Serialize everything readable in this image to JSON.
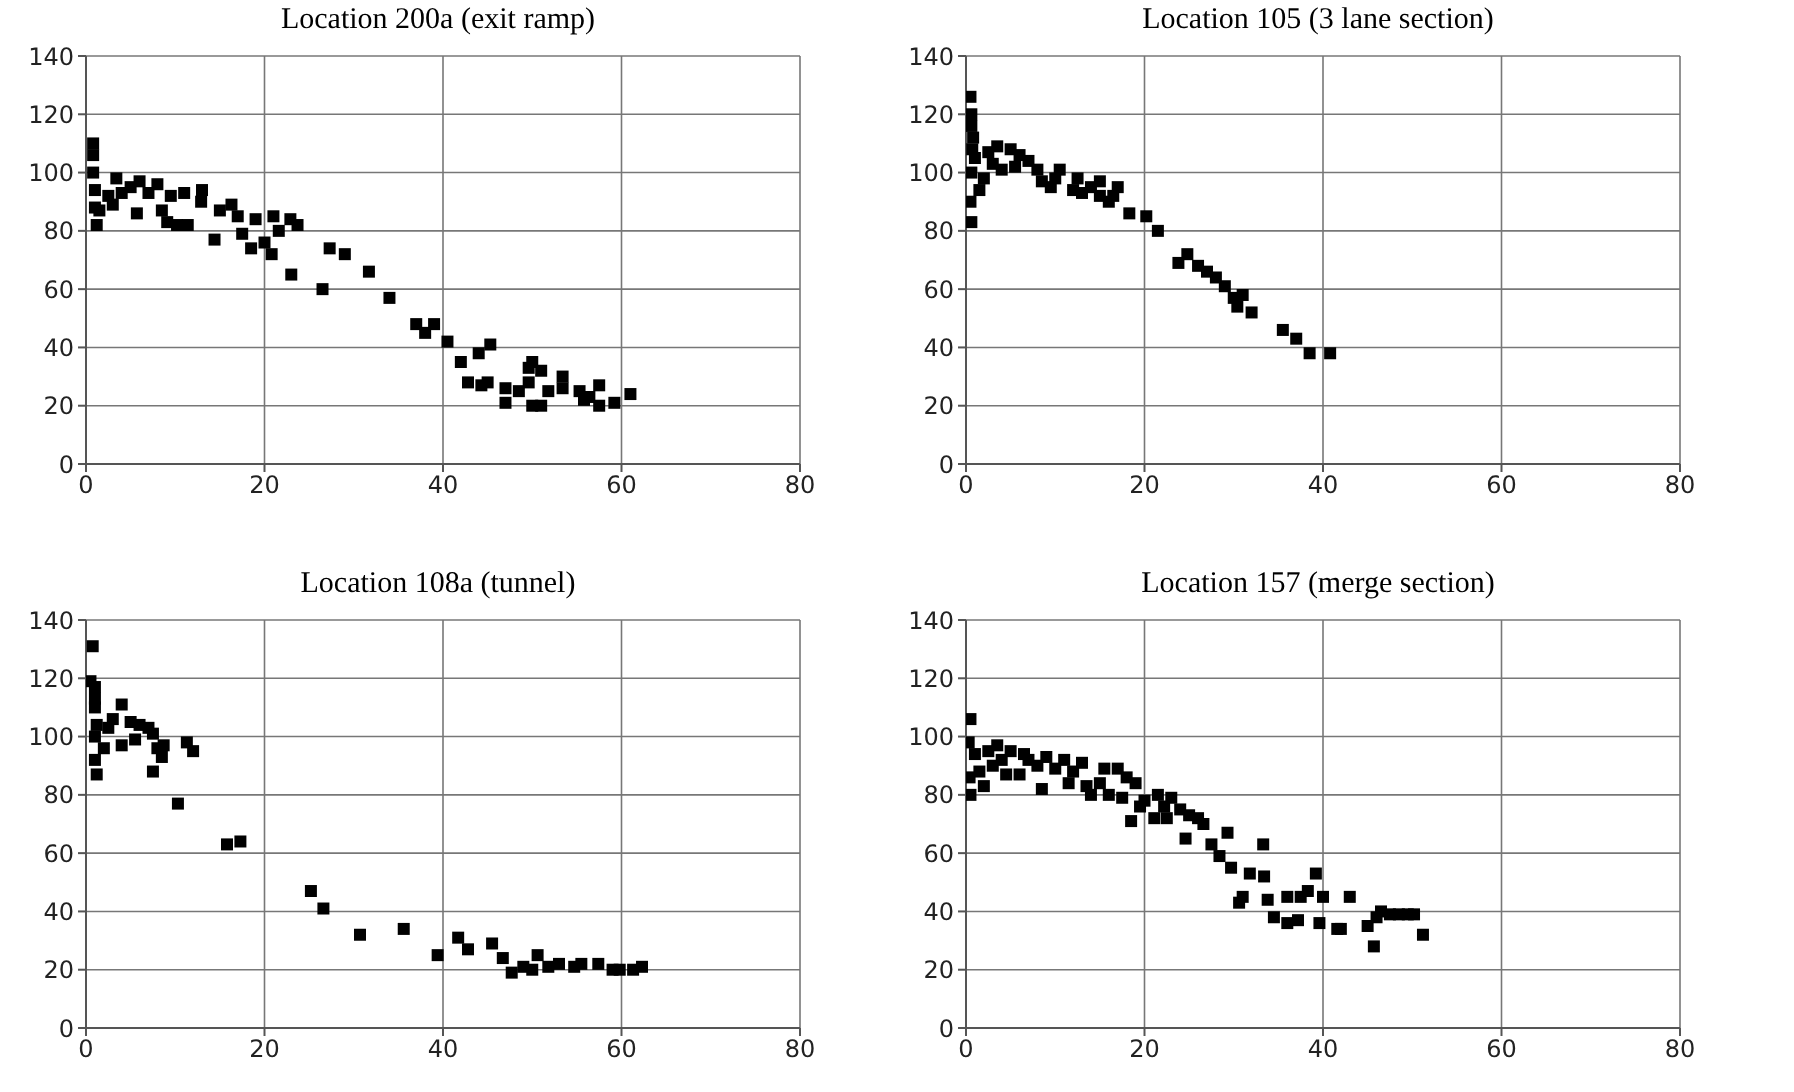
{
  "chart_data": [
    {
      "type": "scatter",
      "title": "Location 200a (exit ramp)",
      "color": "#000000",
      "marker": "square",
      "grid": true,
      "xlim": [
        0,
        80
      ],
      "xticks": [
        0,
        20,
        40,
        60,
        80
      ],
      "ylim": [
        0,
        140
      ],
      "yticks": [
        0,
        20,
        40,
        60,
        80,
        100,
        120,
        140
      ],
      "x": [
        0.8,
        0.8,
        0.8,
        1,
        1,
        1.2,
        1.5,
        2.5,
        3,
        3.4,
        4,
        5,
        5.7,
        6,
        7,
        8,
        8.5,
        9.1,
        9.5,
        10.2,
        11,
        11.4,
        12.9,
        13,
        14.4,
        15,
        16.3,
        17,
        17.5,
        18.5,
        19,
        20,
        20.8,
        21,
        21.6,
        22.9,
        23.7,
        23,
        26.5,
        27.3,
        29,
        31.7,
        34,
        37,
        38,
        39,
        40.5,
        42,
        42.8,
        44,
        44.3,
        45,
        45.3,
        47,
        47,
        48.5,
        49.6,
        49.6,
        50,
        50,
        51,
        51,
        51.8,
        53.4,
        53.4,
        55.3,
        55.8,
        56.4,
        57.5,
        57.5,
        59.2,
        61
      ],
      "values": [
        110,
        106,
        100,
        94,
        88,
        82,
        87,
        92,
        89,
        98,
        93,
        95,
        86,
        97,
        93,
        96,
        87,
        83,
        92,
        82,
        93,
        82,
        90,
        94,
        77,
        87,
        89,
        85,
        79,
        74,
        84,
        76,
        72,
        85,
        80,
        84,
        82,
        65,
        60,
        74,
        72,
        66,
        57,
        48,
        45,
        48,
        42,
        35,
        28,
        38,
        27,
        28,
        41,
        26,
        21,
        25,
        33,
        28,
        35,
        20,
        32,
        20,
        25,
        30,
        26,
        25,
        22,
        23,
        27,
        20,
        21,
        24
      ]
    },
    {
      "type": "scatter",
      "title": "Location 105 (3 lane section)",
      "color": "#000000",
      "marker": "square",
      "grid": true,
      "xlim": [
        0,
        80
      ],
      "xticks": [
        0,
        20,
        40,
        60,
        80
      ],
      "ylim": [
        0,
        140
      ],
      "yticks": [
        0,
        20,
        40,
        60,
        80,
        100,
        120,
        140
      ],
      "x": [
        0.5,
        0.6,
        0.6,
        0.8,
        0.7,
        0.6,
        0.5,
        0.6,
        1,
        1.5,
        2,
        2.5,
        3,
        3.5,
        4,
        5,
        5.5,
        6,
        7,
        8,
        8.5,
        9.5,
        10,
        10.5,
        12,
        12.5,
        13,
        14,
        15,
        15,
        16,
        16.5,
        17,
        18.3,
        20.2,
        21.5,
        23.8,
        24.8,
        26,
        27,
        28,
        29,
        30,
        30.4,
        31,
        32,
        35.5,
        37,
        38.5,
        40.8
      ],
      "values": [
        126,
        120,
        116,
        112,
        108,
        100,
        90,
        83,
        105,
        94,
        98,
        107,
        103,
        109,
        101,
        108,
        102,
        106,
        104,
        101,
        97,
        95,
        98,
        101,
        94,
        98,
        93,
        95,
        92,
        97,
        90,
        92,
        95,
        86,
        85,
        80,
        69,
        72,
        68,
        66,
        64,
        61,
        57,
        54,
        58,
        52,
        46,
        43,
        38,
        38
      ]
    },
    {
      "type": "scatter",
      "title": "Location 108a (tunnel)",
      "color": "#000000",
      "marker": "square",
      "grid": true,
      "xlim": [
        0,
        80
      ],
      "xticks": [
        0,
        20,
        40,
        60,
        80
      ],
      "ylim": [
        0,
        140
      ],
      "yticks": [
        0,
        20,
        40,
        60,
        80,
        100,
        120,
        140
      ],
      "x": [
        0.75,
        0.5,
        1,
        1,
        1,
        1.2,
        1,
        1,
        1.2,
        2,
        2.5,
        3,
        4,
        4,
        5,
        5.5,
        6,
        7,
        7.5,
        7.5,
        8,
        8.5,
        8.7,
        10.3,
        11.3,
        12,
        15.8,
        17.3,
        25.2,
        26.6,
        30.7,
        35.6,
        39.4,
        41.7,
        42.8,
        45.5,
        46.7,
        47.7,
        49,
        50,
        50.6,
        51.8,
        53,
        54.7,
        55.5,
        57.4,
        59,
        59.8,
        61.3,
        62.3
      ],
      "values": [
        131,
        119,
        117,
        113,
        110,
        104,
        100,
        92,
        87,
        96,
        103,
        106,
        97,
        111,
        105,
        99,
        104,
        103,
        101,
        88,
        96,
        93,
        97,
        77,
        98,
        95,
        63,
        64,
        47,
        41,
        32,
        34,
        25,
        31,
        27,
        29,
        24,
        19,
        21,
        20,
        25,
        21,
        22,
        21,
        22,
        22,
        20,
        20,
        20,
        21
      ]
    },
    {
      "type": "scatter",
      "title": "Location 157 (merge section)",
      "color": "#000000",
      "marker": "square",
      "grid": true,
      "xlim": [
        0,
        80
      ],
      "xticks": [
        0,
        20,
        40,
        60,
        80
      ],
      "ylim": [
        0,
        140
      ],
      "yticks": [
        0,
        20,
        40,
        60,
        80,
        100,
        120,
        140
      ],
      "x": [
        0.5,
        0.3,
        0.4,
        0.5,
        1,
        1.5,
        2,
        2.5,
        3,
        3.5,
        4,
        4.5,
        5,
        6,
        6.5,
        7,
        8,
        8.5,
        9,
        10,
        11,
        11.5,
        12,
        13,
        13.5,
        14,
        15,
        15.5,
        16,
        17,
        17.5,
        18,
        18.5,
        19,
        19.5,
        20,
        21.1,
        21.5,
        22.2,
        22.5,
        23,
        24,
        24.6,
        25,
        26,
        26.6,
        27.5,
        28.4,
        29.3,
        29.7,
        30.6,
        31,
        31.8,
        33.3,
        33.4,
        33.8,
        34.5,
        36,
        36,
        37.2,
        37.5,
        38.3,
        39.2,
        39.6,
        40,
        41.6,
        42,
        43,
        45,
        45.7,
        46,
        46.5,
        47.5,
        48.5,
        49.5,
        50.2,
        51.2
      ],
      "values": [
        106,
        98,
        86,
        80,
        94,
        88,
        83,
        95,
        90,
        97,
        92,
        87,
        95,
        87,
        94,
        92,
        90,
        82,
        93,
        89,
        92,
        84,
        88,
        91,
        83,
        80,
        84,
        89,
        80,
        89,
        79,
        86,
        71,
        84,
        76,
        78,
        72,
        80,
        76,
        72,
        79,
        75,
        65,
        73,
        72,
        70,
        63,
        59,
        67,
        55,
        43,
        45,
        53,
        63,
        52,
        44,
        38,
        45,
        36,
        37,
        45,
        47,
        53,
        36,
        45,
        34,
        34,
        45,
        35,
        28,
        38,
        40,
        39,
        39,
        39,
        39,
        32
      ]
    }
  ]
}
